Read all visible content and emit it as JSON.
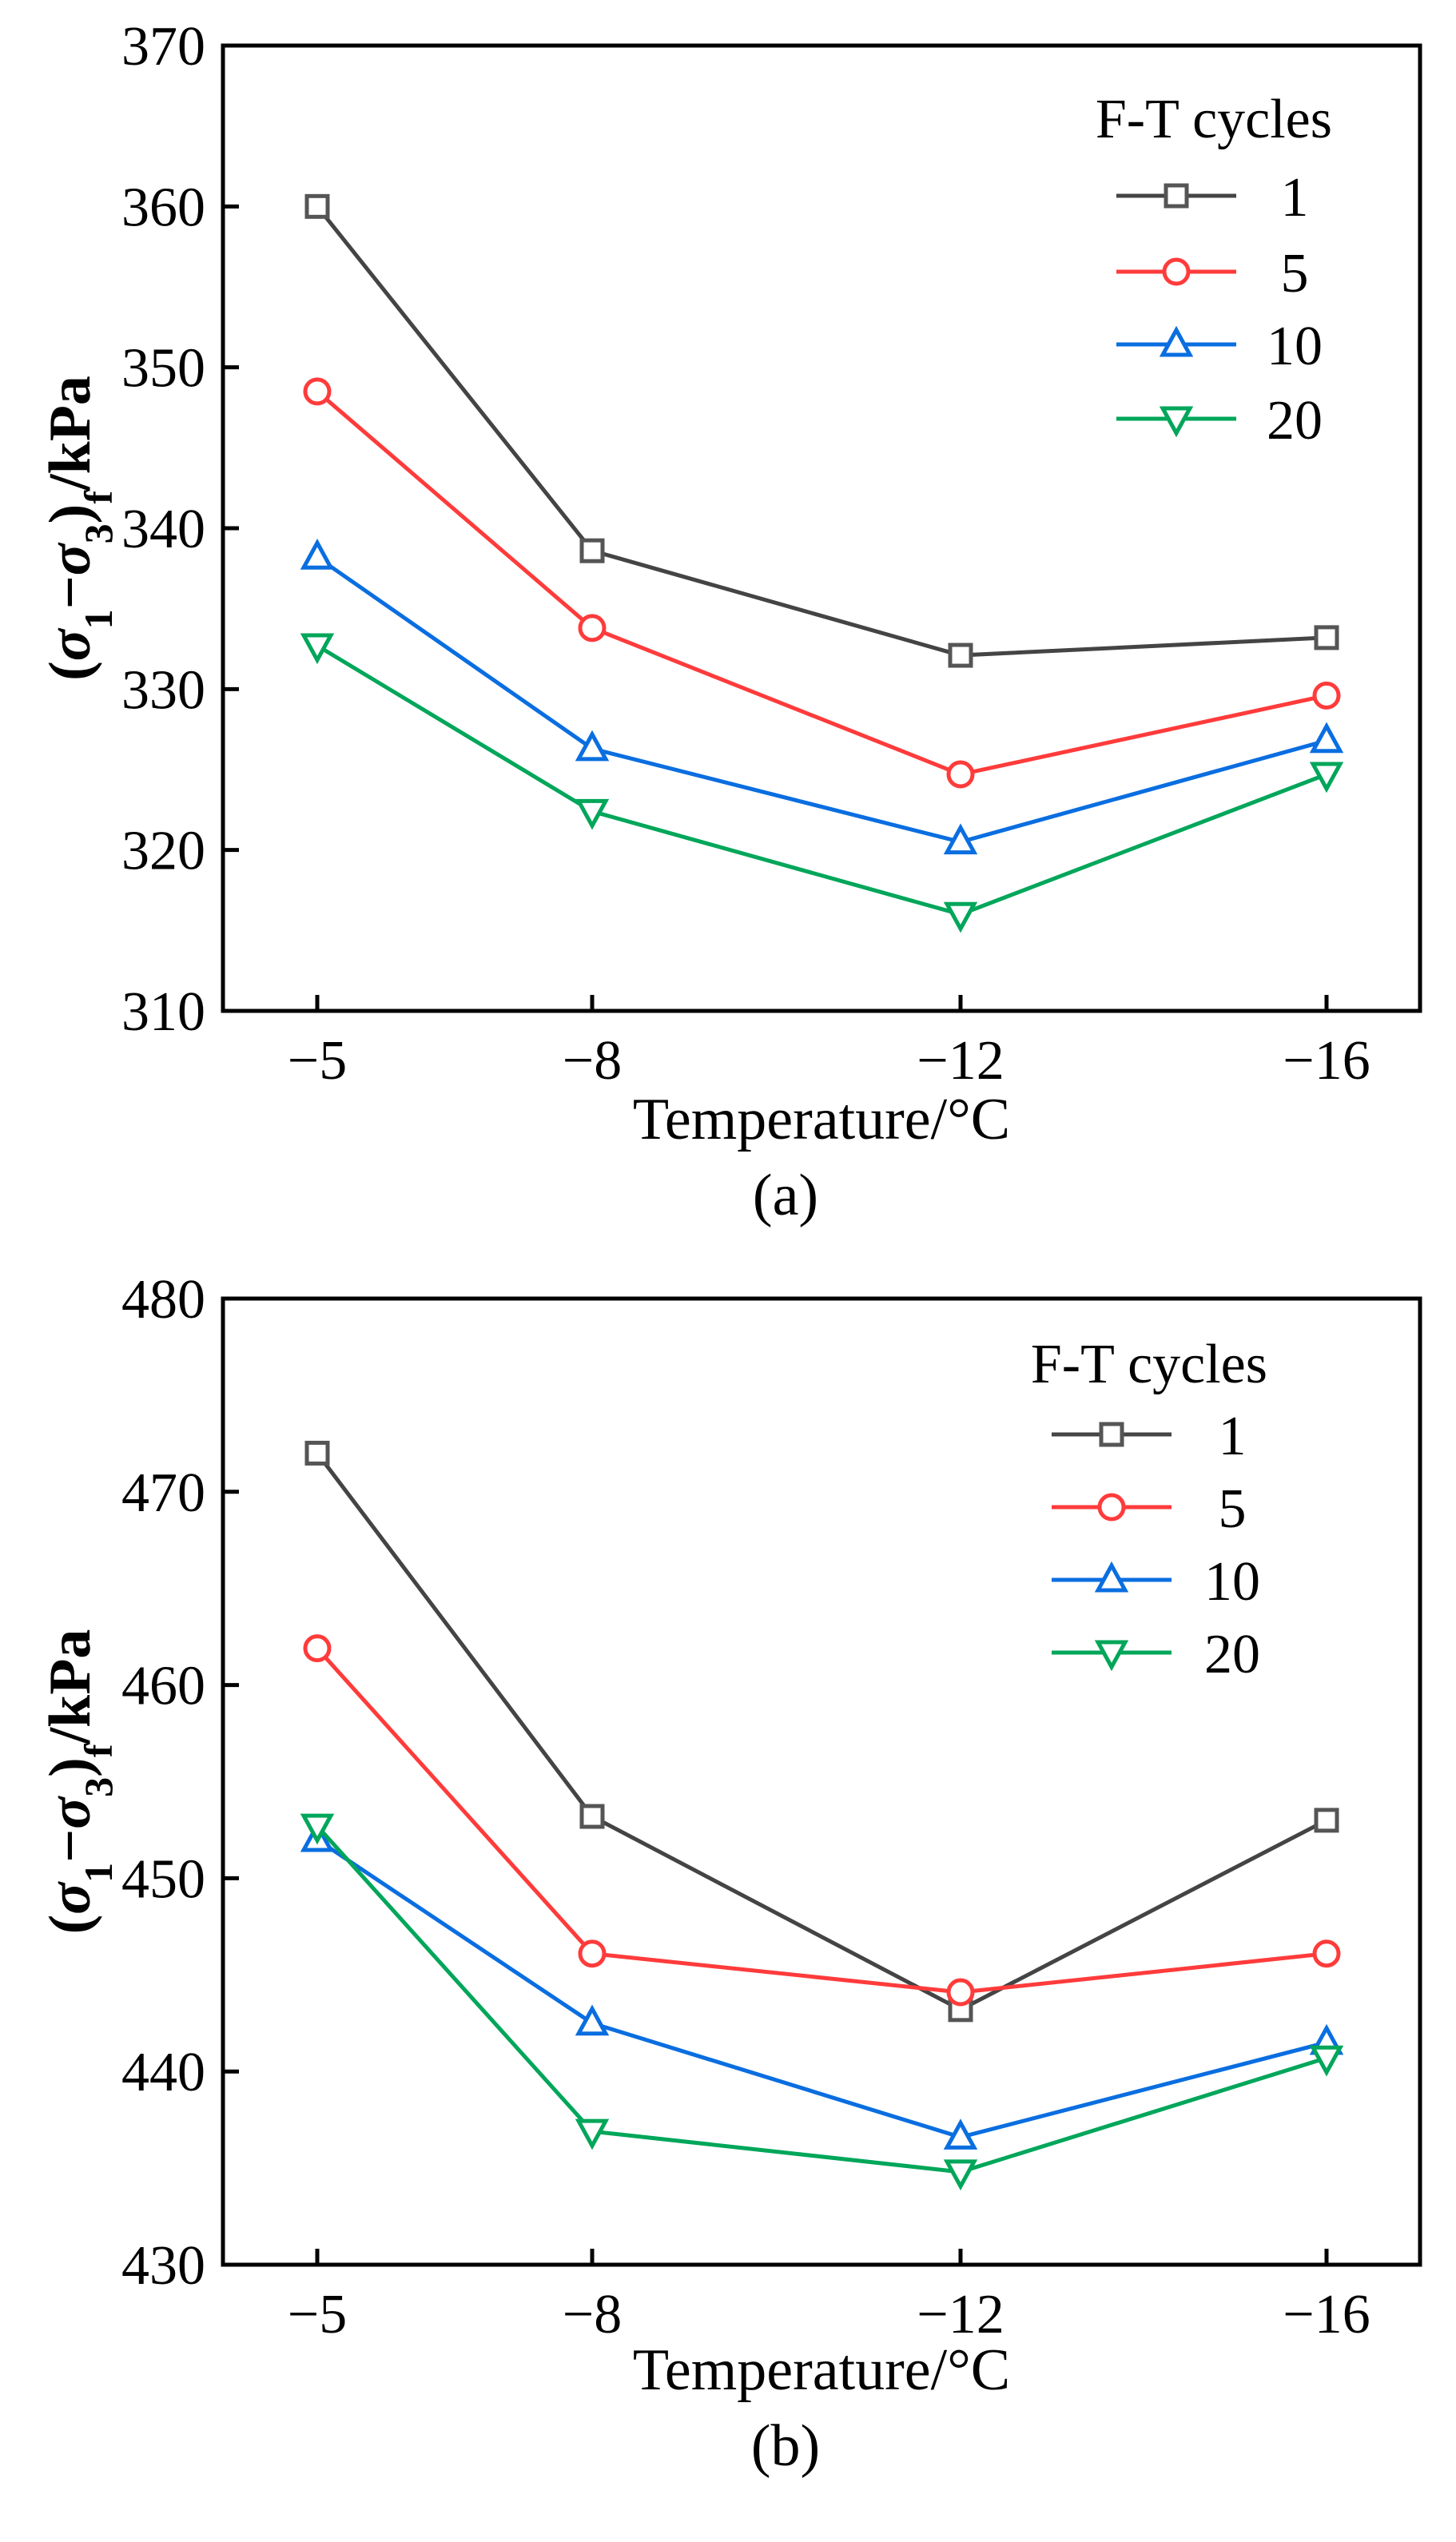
{
  "colors": {
    "1": "#555555",
    "5": "#ff3b3b",
    "10": "#0a6ee0",
    "20": "#00a65a",
    "axis": "#000000"
  },
  "chart_data": [
    {
      "type": "line",
      "panel_label": "(a)",
      "xlabel": "Temperature/°C",
      "ylabel": {
        "open": "(",
        "s1": "σ",
        "sub1": "1",
        "minus": "−",
        "s3": "σ",
        "sub3": "3",
        "close": ")",
        "subf": "f",
        "unit": "/kPa"
      },
      "categories": [
        "−5",
        "−8",
        "−12",
        "−16"
      ],
      "ylim": [
        310,
        370
      ],
      "yticks": [
        "310",
        "320",
        "330",
        "340",
        "350",
        "360",
        "370"
      ],
      "legend_title": "F-T cycles",
      "legend_position": "top-right",
      "grid": false,
      "series": [
        {
          "name": "1",
          "marker": "square",
          "values": [
            360.0,
            338.6,
            332.1,
            333.2
          ]
        },
        {
          "name": "5",
          "marker": "circle",
          "values": [
            348.5,
            333.8,
            324.7,
            329.6
          ]
        },
        {
          "name": "10",
          "marker": "triangle-up",
          "values": [
            338.2,
            326.3,
            320.5,
            326.8
          ]
        },
        {
          "name": "20",
          "marker": "triangle-down",
          "values": [
            332.7,
            322.4,
            316.0,
            324.7
          ]
        }
      ]
    },
    {
      "type": "line",
      "panel_label": "(b)",
      "xlabel": "Temperature/°C",
      "ylabel": {
        "open": "(",
        "s1": "σ",
        "sub1": "1",
        "minus": "−",
        "s3": "σ",
        "sub3": "3",
        "close": ")",
        "subf": "f",
        "unit": "/kPa"
      },
      "categories": [
        "−5",
        "−8",
        "−12",
        "−16"
      ],
      "ylim": [
        430,
        480
      ],
      "yticks": [
        "430",
        "440",
        "450",
        "460",
        "470",
        "480"
      ],
      "legend_title": "F-T cycles",
      "legend_position": "top-right",
      "grid": false,
      "series": [
        {
          "name": "1",
          "marker": "square",
          "values": [
            472.0,
            453.2,
            443.2,
            453.0
          ]
        },
        {
          "name": "5",
          "marker": "circle",
          "values": [
            461.9,
            446.1,
            444.1,
            446.1
          ]
        },
        {
          "name": "10",
          "marker": "triangle-up",
          "values": [
            452.0,
            442.5,
            436.6,
            441.5
          ]
        },
        {
          "name": "20",
          "marker": "triangle-down",
          "values": [
            452.7,
            436.9,
            434.8,
            440.7
          ]
        }
      ]
    }
  ]
}
